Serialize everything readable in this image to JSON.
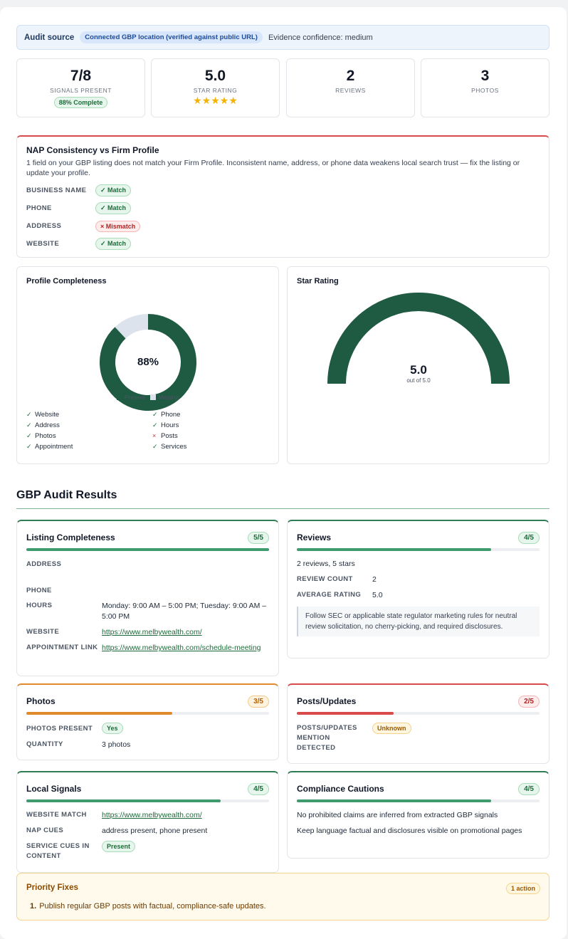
{
  "audit_source": {
    "label": "Audit source",
    "connection": "Connected GBP location (verified against public URL)",
    "confidence": "Evidence confidence: medium"
  },
  "stats": [
    {
      "value": "7/8",
      "label": "SIGNALS PRESENT",
      "badge": "88% Complete"
    },
    {
      "value": "5.0",
      "label": "STAR RATING",
      "stars": "★★★★★"
    },
    {
      "value": "2",
      "label": "REVIEWS"
    },
    {
      "value": "3",
      "label": "PHOTOS"
    }
  ],
  "nap": {
    "title": "NAP Consistency vs Firm Profile",
    "description": "1 field on your GBP listing does not match your Firm Profile. Inconsistent name, address, or phone data weakens local search trust — fix the listing or update your profile.",
    "rows": [
      {
        "field": "BUSINESS NAME",
        "status": "✓ Match"
      },
      {
        "field": "PHONE",
        "status": "✓ Match"
      },
      {
        "field": "ADDRESS",
        "status": "× Mismatch"
      },
      {
        "field": "WEBSITE",
        "status": "✓ Match"
      }
    ]
  },
  "profile_completeness": {
    "title": "Profile Completeness",
    "center_label": "88%",
    "legend": [
      "Present",
      "Missing"
    ],
    "checks": [
      {
        "label": "Website",
        "ok": "✓"
      },
      {
        "label": "Phone",
        "ok": "✓"
      },
      {
        "label": "Address",
        "ok": "✓"
      },
      {
        "label": "Hours",
        "ok": "✓"
      },
      {
        "label": "Photos",
        "ok": "✓"
      },
      {
        "label": "Posts",
        "ok": "×"
      },
      {
        "label": "Appointment",
        "ok": "✓"
      },
      {
        "label": "Services",
        "ok": "✓"
      }
    ]
  },
  "star_rating": {
    "title": "Star Rating",
    "value": "5.0",
    "sub": "out of 5.0"
  },
  "chart_data": [
    {
      "type": "pie",
      "title": "Profile Completeness",
      "categories": [
        "Present",
        "Missing"
      ],
      "values": [
        88,
        12
      ],
      "colors": [
        "#1f5a42",
        "#dde3ec"
      ]
    },
    {
      "type": "gauge",
      "title": "Star Rating",
      "value": 5.0,
      "ylim": [
        0,
        5.0
      ],
      "colors": [
        "#1f5a42"
      ]
    }
  ],
  "results": {
    "title": "GBP Audit Results",
    "listing": {
      "title": "Listing Completeness",
      "score": "5/5",
      "progress": 1.0,
      "address_k": "ADDRESS",
      "phone_k": "PHONE",
      "hours_k": "HOURS",
      "hours_v": "Monday: 9:00 AM – 5:00 PM; Tuesday: 9:00 AM – 5:00 PM",
      "website_k": "WEBSITE",
      "website_v": "https://www.melbywealth.com/",
      "appt_k": "APPOINTMENT LINK",
      "appt_v": "https://www.melbywealth.com/schedule-meeting"
    },
    "reviews": {
      "title": "Reviews",
      "score": "4/5",
      "progress": 0.8,
      "summary": "2 reviews, 5 stars",
      "count_k": "REVIEW COUNT",
      "count_v": "2",
      "avg_k": "AVERAGE RATING",
      "avg_v": "5.0",
      "note": "Follow SEC or applicable state regulator marketing rules for neutral review solicitation, no cherry-picking, and required disclosures."
    },
    "photos": {
      "title": "Photos",
      "score": "3/5",
      "progress": 0.6,
      "present_k": "PHOTOS PRESENT",
      "present_v": "Yes",
      "qty_k": "QUANTITY",
      "qty_v": "3 photos"
    },
    "posts": {
      "title": "Posts/Updates",
      "score": "2/5",
      "progress": 0.4,
      "k": "POSTS/UPDATES MENTION DETECTED",
      "v": "Unknown"
    },
    "local": {
      "title": "Local Signals",
      "score": "4/5",
      "progress": 0.8,
      "web_k": "WEBSITE MATCH",
      "web_v": "https://www.melbywealth.com/",
      "nap_k": "NAP CUES",
      "nap_v": "address present, phone present",
      "svc_k": "SERVICE CUES IN CONTENT",
      "svc_v": "Present"
    },
    "compliance": {
      "title": "Compliance Cautions",
      "score": "4/5",
      "progress": 0.8,
      "line1": "No prohibited claims are inferred from extracted GBP signals",
      "line2": "Keep language factual and disclosures visible on promotional pages"
    }
  },
  "priority_fixes": {
    "title": "Priority Fixes",
    "count": "1 action",
    "items": [
      {
        "num": "1.",
        "text": "Publish regular GBP posts with factual, compliance-safe updates."
      }
    ]
  }
}
